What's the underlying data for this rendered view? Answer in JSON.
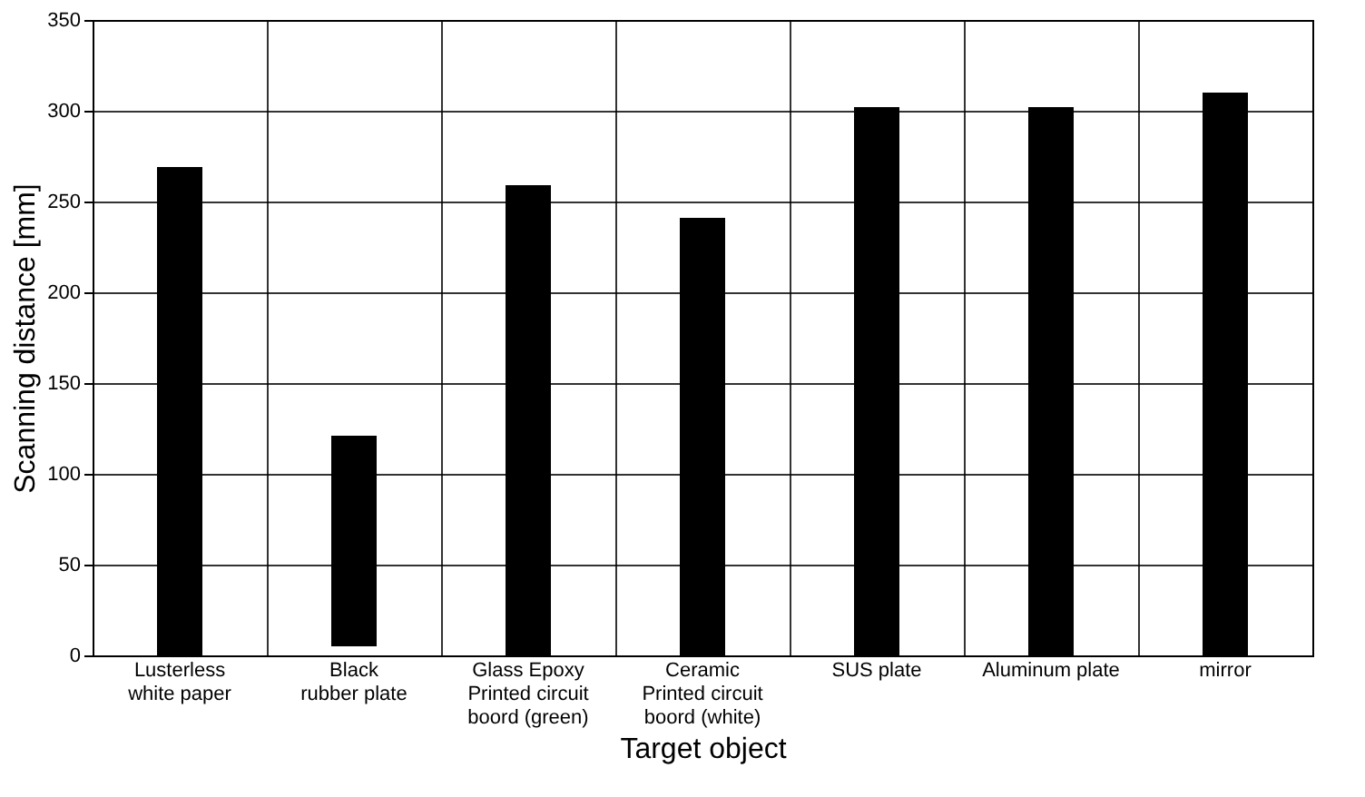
{
  "chart_data": {
    "type": "bar",
    "xlabel": "Target object",
    "ylabel": "Scanning distance [mm]",
    "categories": [
      "Lusterless\nwhite paper",
      "Black\nrubber plate",
      "Glass Epoxy\nPrinted circuit\nboord (green)",
      "Ceramic\nPrinted circuit\nboord (white)",
      "SUS plate",
      "Aluminum plate",
      "mirror"
    ],
    "values": [
      269,
      116,
      259,
      241,
      302,
      302,
      310
    ],
    "base": [
      0,
      5,
      0,
      0,
      0,
      0,
      0
    ],
    "color": "#000000",
    "ylim": [
      0,
      350
    ],
    "yticks": [
      0,
      50,
      100,
      150,
      200,
      250,
      300,
      350
    ],
    "grid": true
  }
}
